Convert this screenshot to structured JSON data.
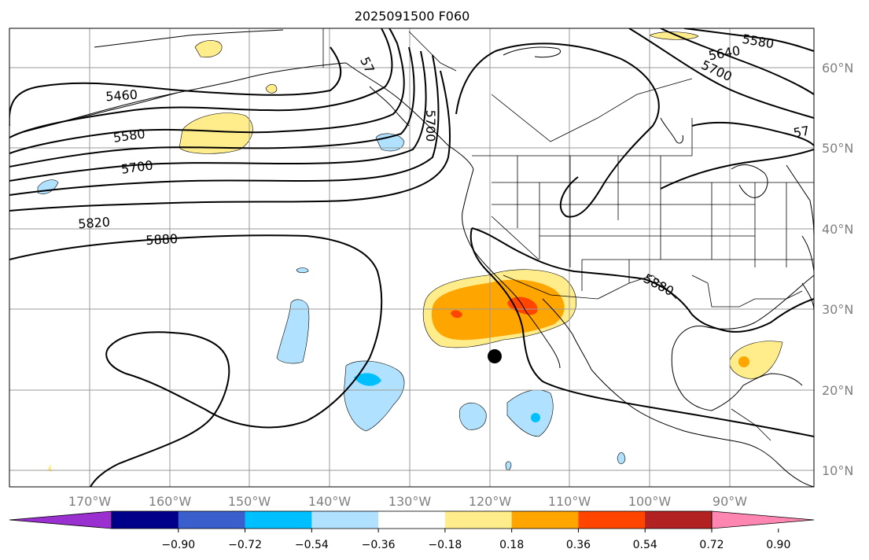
{
  "title": "2025091500 F060",
  "map": {
    "lon_range": [
      -180,
      -79
    ],
    "lat_range": [
      8,
      65
    ],
    "lat_labels": [
      "10°N",
      "20°N",
      "30°N",
      "40°N",
      "50°N",
      "60°N"
    ],
    "lon_labels": [
      "170°W",
      "160°W",
      "150°W",
      "140°W",
      "130°W",
      "120°W",
      "110°W",
      "100°W",
      "90°W"
    ],
    "contour_labels": [
      "5460",
      "5580",
      "5700",
      "5820",
      "5880",
      "5880",
      "5580",
      "5640",
      "5700",
      "57",
      "5700",
      "57"
    ],
    "marker": {
      "name": "black-dot",
      "lon": -120,
      "lat": 24
    }
  },
  "colorbar": {
    "ticks": [
      "−0.90",
      "−0.72",
      "−0.54",
      "−0.36",
      "−0.18",
      "0.18",
      "0.36",
      "0.54",
      "0.72",
      "0.90"
    ],
    "colors": [
      "#9b30d0",
      "#00008b",
      "#3a5fcd",
      "#00bfff",
      "#b0e2ff",
      "#ffffff",
      "#ffec8b",
      "#ffa500",
      "#ff4500",
      "#b22222",
      "#ff86b0"
    ]
  }
}
